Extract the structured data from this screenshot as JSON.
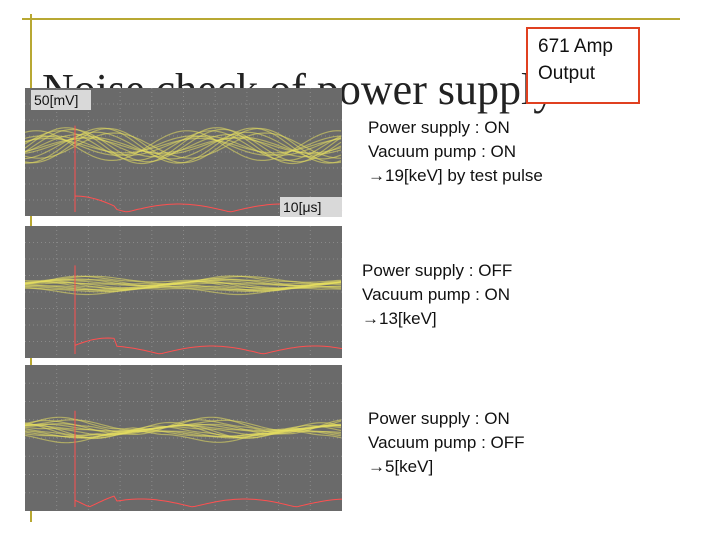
{
  "slide": {
    "title": "Noise check of power supply",
    "callout": {
      "lines": [
        "671 Amp",
        "Output"
      ]
    },
    "scope_labels": {
      "vertical": "50[mV]",
      "horizontal": "10[μs]"
    },
    "panels": [
      {
        "lines": [
          "Power supply : ON",
          "Vacuum pump : ON",
          "→19[keV] by test pulse"
        ]
      },
      {
        "lines": [
          "Power supply : OFF",
          "Vacuum pump : ON",
          "→13[keV]"
        ]
      },
      {
        "lines": [
          "Power supply : ON",
          "Vacuum pump : OFF",
          "→5[keV]"
        ]
      }
    ]
  }
}
